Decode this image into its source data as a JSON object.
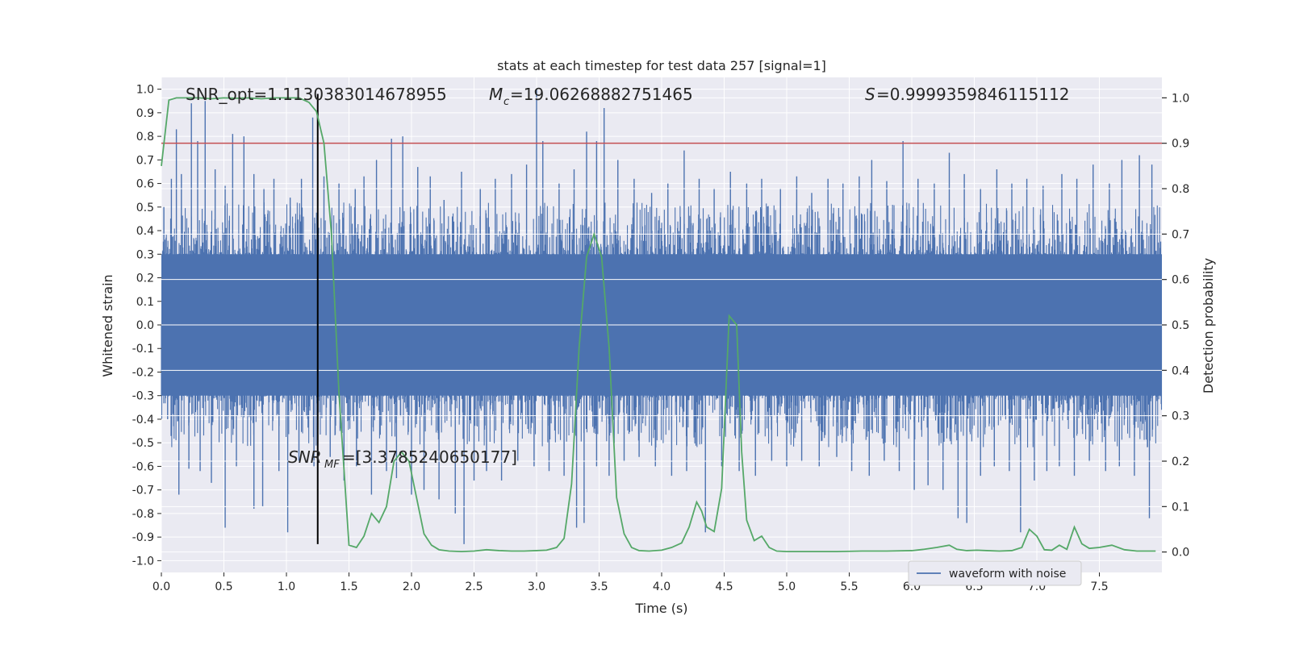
{
  "chart_data": {
    "type": "line",
    "title": "stats at each timestep for test data 257 [signal=1]",
    "xlabel": "Time (s)",
    "ylabel": "Whitened strain",
    "y2label": "Detection probability",
    "xlim": [
      0,
      8
    ],
    "ylim": [
      -1.05,
      1.05
    ],
    "y2lim": [
      -0.045,
      1.045
    ],
    "x_ticks": [
      0.0,
      0.5,
      1.0,
      1.5,
      2.0,
      2.5,
      3.0,
      3.5,
      4.0,
      4.5,
      5.0,
      5.5,
      6.0,
      6.5,
      7.0,
      7.5
    ],
    "x_tick_labels": [
      "0.0",
      "0.5",
      "1.0",
      "1.5",
      "2.0",
      "2.5",
      "3.0",
      "3.5",
      "4.0",
      "4.5",
      "5.0",
      "5.5",
      "6.0",
      "6.5",
      "7.0",
      "7.5"
    ],
    "y_ticks": [
      1.0,
      0.9,
      0.8,
      0.7,
      0.6,
      0.5,
      0.4,
      0.3,
      0.2,
      0.1,
      0.0,
      -0.1,
      -0.2,
      -0.3,
      -0.4,
      -0.5,
      -0.6,
      -0.7,
      -0.8,
      -0.9,
      -1.0
    ],
    "y_tick_labels": [
      "1.0",
      "0.9",
      "0.8",
      "0.7",
      "0.6",
      "0.5",
      "0.4",
      "0.3",
      "0.2",
      "0.1",
      "0.0",
      "-0.1",
      "-0.2",
      "-0.3",
      "-0.4",
      "-0.5",
      "-0.6",
      "-0.7",
      "-0.8",
      "-0.9",
      "-1.0"
    ],
    "y2_ticks": [
      1.0,
      0.9,
      0.8,
      0.7,
      0.6,
      0.5,
      0.4,
      0.3,
      0.2,
      0.1,
      0.0
    ],
    "y2_tick_labels": [
      "1.0",
      "0.9",
      "0.8",
      "0.7",
      "0.6",
      "0.5",
      "0.4",
      "0.3",
      "0.2",
      "0.1",
      "0.0"
    ],
    "grid": true,
    "legend_position": "bottom-right",
    "annotations": {
      "snr_opt": "SNR_opt=1.1130383014678955",
      "mc": "=19.06268882751465",
      "s": "=0.9999359846115112",
      "snr_mf": "=[3.3785240650177]"
    },
    "series": [
      {
        "name": "waveform with noise",
        "color": "#4c72b0",
        "description_style": "dense noise",
        "spikes": [
          {
            "x": 0.02,
            "y": 0.5
          },
          {
            "x": 0.08,
            "y": 0.62
          },
          {
            "x": 0.12,
            "y": 0.83
          },
          {
            "x": 0.16,
            "y": 0.64
          },
          {
            "x": 0.24,
            "y": 0.94
          },
          {
            "x": 0.29,
            "y": 0.78
          },
          {
            "x": 0.35,
            "y": 0.95
          },
          {
            "x": 0.43,
            "y": 0.66
          },
          {
            "x": 0.51,
            "y": 0.59
          },
          {
            "x": 0.57,
            "y": 0.81
          },
          {
            "x": 0.66,
            "y": 0.8
          },
          {
            "x": 0.74,
            "y": 0.64
          },
          {
            "x": 0.82,
            "y": 0.58
          },
          {
            "x": 0.9,
            "y": 0.62
          },
          {
            "x": 1.03,
            "y": 0.54
          },
          {
            "x": 1.12,
            "y": 0.62
          },
          {
            "x": 1.21,
            "y": 0.88
          },
          {
            "x": 1.3,
            "y": 0.63
          },
          {
            "x": 1.42,
            "y": 0.6
          },
          {
            "x": 1.55,
            "y": 0.58
          },
          {
            "x": 1.62,
            "y": 0.63
          },
          {
            "x": 1.72,
            "y": 0.7
          },
          {
            "x": 1.84,
            "y": 0.79
          },
          {
            "x": 1.93,
            "y": 0.8
          },
          {
            "x": 2.05,
            "y": 0.67
          },
          {
            "x": 2.15,
            "y": 0.63
          },
          {
            "x": 2.26,
            "y": 0.53
          },
          {
            "x": 2.4,
            "y": 0.65
          },
          {
            "x": 2.55,
            "y": 0.58
          },
          {
            "x": 2.67,
            "y": 0.62
          },
          {
            "x": 2.8,
            "y": 0.64
          },
          {
            "x": 2.92,
            "y": 0.68
          },
          {
            "x": 3.0,
            "y": 1.0
          },
          {
            "x": 3.05,
            "y": 0.78
          },
          {
            "x": 3.18,
            "y": 0.6
          },
          {
            "x": 3.3,
            "y": 0.66
          },
          {
            "x": 3.4,
            "y": 0.82
          },
          {
            "x": 3.48,
            "y": 0.78
          },
          {
            "x": 3.54,
            "y": 0.92
          },
          {
            "x": 3.65,
            "y": 0.7
          },
          {
            "x": 3.78,
            "y": 0.62
          },
          {
            "x": 3.92,
            "y": 0.56
          },
          {
            "x": 4.05,
            "y": 0.6
          },
          {
            "x": 4.18,
            "y": 0.74
          },
          {
            "x": 4.3,
            "y": 0.62
          },
          {
            "x": 4.42,
            "y": 0.58
          },
          {
            "x": 4.55,
            "y": 0.65
          },
          {
            "x": 4.68,
            "y": 0.6
          },
          {
            "x": 4.8,
            "y": 0.62
          },
          {
            "x": 4.95,
            "y": 0.58
          },
          {
            "x": 5.08,
            "y": 0.63
          },
          {
            "x": 5.2,
            "y": 0.56
          },
          {
            "x": 5.33,
            "y": 0.62
          },
          {
            "x": 5.45,
            "y": 0.6
          },
          {
            "x": 5.58,
            "y": 0.63
          },
          {
            "x": 5.68,
            "y": 0.7
          },
          {
            "x": 5.8,
            "y": 0.61
          },
          {
            "x": 5.93,
            "y": 0.78
          },
          {
            "x": 6.05,
            "y": 0.62
          },
          {
            "x": 6.18,
            "y": 0.6
          },
          {
            "x": 6.3,
            "y": 0.73
          },
          {
            "x": 6.42,
            "y": 0.64
          },
          {
            "x": 6.55,
            "y": 0.58
          },
          {
            "x": 6.68,
            "y": 0.66
          },
          {
            "x": 6.8,
            "y": 0.6
          },
          {
            "x": 6.92,
            "y": 0.62
          },
          {
            "x": 7.05,
            "y": 0.59
          },
          {
            "x": 7.2,
            "y": 0.64
          },
          {
            "x": 7.32,
            "y": 0.62
          },
          {
            "x": 7.45,
            "y": 0.68
          },
          {
            "x": 7.58,
            "y": 0.6
          },
          {
            "x": 7.68,
            "y": 0.7
          },
          {
            "x": 7.82,
            "y": 0.72
          },
          {
            "x": 7.92,
            "y": 0.68
          },
          {
            "x": 0.05,
            "y": -0.4
          },
          {
            "x": 0.14,
            "y": -0.72
          },
          {
            "x": 0.22,
            "y": -0.61
          },
          {
            "x": 0.31,
            "y": -0.62
          },
          {
            "x": 0.4,
            "y": -0.67
          },
          {
            "x": 0.51,
            "y": -0.86
          },
          {
            "x": 0.6,
            "y": -0.6
          },
          {
            "x": 0.74,
            "y": -0.78
          },
          {
            "x": 0.81,
            "y": -0.77
          },
          {
            "x": 0.94,
            "y": -0.62
          },
          {
            "x": 1.01,
            "y": -0.88
          },
          {
            "x": 1.1,
            "y": -0.58
          },
          {
            "x": 1.22,
            "y": -0.6
          },
          {
            "x": 1.35,
            "y": -0.56
          },
          {
            "x": 1.46,
            "y": -0.66
          },
          {
            "x": 1.56,
            "y": -0.6
          },
          {
            "x": 1.68,
            "y": -0.72
          },
          {
            "x": 1.8,
            "y": -0.62
          },
          {
            "x": 1.88,
            "y": -0.65
          },
          {
            "x": 2.0,
            "y": -0.72
          },
          {
            "x": 2.1,
            "y": -0.7
          },
          {
            "x": 2.22,
            "y": -0.74
          },
          {
            "x": 2.35,
            "y": -0.8
          },
          {
            "x": 2.42,
            "y": -0.93
          },
          {
            "x": 2.5,
            "y": -0.66
          },
          {
            "x": 2.6,
            "y": -0.62
          },
          {
            "x": 2.72,
            "y": -0.66
          },
          {
            "x": 2.85,
            "y": -0.58
          },
          {
            "x": 2.98,
            "y": -0.6
          },
          {
            "x": 3.1,
            "y": -0.62
          },
          {
            "x": 3.22,
            "y": -0.64
          },
          {
            "x": 3.32,
            "y": -0.86
          },
          {
            "x": 3.38,
            "y": -0.84
          },
          {
            "x": 3.48,
            "y": -0.6
          },
          {
            "x": 3.58,
            "y": -0.64
          },
          {
            "x": 3.7,
            "y": -0.58
          },
          {
            "x": 3.82,
            "y": -0.56
          },
          {
            "x": 3.95,
            "y": -0.6
          },
          {
            "x": 4.08,
            "y": -0.64
          },
          {
            "x": 4.2,
            "y": -0.62
          },
          {
            "x": 4.35,
            "y": -0.88
          },
          {
            "x": 4.48,
            "y": -0.6
          },
          {
            "x": 4.62,
            "y": -0.62
          },
          {
            "x": 4.75,
            "y": -0.64
          },
          {
            "x": 4.88,
            "y": -0.58
          },
          {
            "x": 5.0,
            "y": -0.6
          },
          {
            "x": 5.12,
            "y": -0.58
          },
          {
            "x": 5.26,
            "y": -0.6
          },
          {
            "x": 5.4,
            "y": -0.56
          },
          {
            "x": 5.52,
            "y": -0.62
          },
          {
            "x": 5.66,
            "y": -0.64
          },
          {
            "x": 5.78,
            "y": -0.58
          },
          {
            "x": 5.9,
            "y": -0.62
          },
          {
            "x": 6.02,
            "y": -0.7
          },
          {
            "x": 6.13,
            "y": -0.68
          },
          {
            "x": 6.25,
            "y": -0.7
          },
          {
            "x": 6.37,
            "y": -0.82
          },
          {
            "x": 6.44,
            "y": -0.84
          },
          {
            "x": 6.55,
            "y": -0.64
          },
          {
            "x": 6.66,
            "y": -0.6
          },
          {
            "x": 6.78,
            "y": -0.62
          },
          {
            "x": 6.87,
            "y": -0.88
          },
          {
            "x": 6.98,
            "y": -0.66
          },
          {
            "x": 7.08,
            "y": -0.62
          },
          {
            "x": 7.18,
            "y": -0.6
          },
          {
            "x": 7.3,
            "y": -0.64
          },
          {
            "x": 7.42,
            "y": -0.58
          },
          {
            "x": 7.55,
            "y": -0.62
          },
          {
            "x": 7.66,
            "y": -0.6
          },
          {
            "x": 7.78,
            "y": -0.64
          },
          {
            "x": 7.9,
            "y": -0.82
          }
        ]
      },
      {
        "name": "detection probability",
        "color": "#55a868",
        "axis": "right",
        "x": [
          0.0,
          0.06,
          0.12,
          0.2,
          0.3,
          0.4,
          0.5,
          0.6,
          0.7,
          0.8,
          0.9,
          1.0,
          1.1,
          1.18,
          1.24,
          1.3,
          1.36,
          1.42,
          1.5,
          1.56,
          1.62,
          1.68,
          1.74,
          1.8,
          1.86,
          1.92,
          1.98,
          2.04,
          2.1,
          2.16,
          2.22,
          2.3,
          2.4,
          2.5,
          2.6,
          2.7,
          2.8,
          2.9,
          3.0,
          3.08,
          3.16,
          3.22,
          3.28,
          3.34,
          3.4,
          3.46,
          3.52,
          3.58,
          3.64,
          3.7,
          3.76,
          3.82,
          3.9,
          4.0,
          4.08,
          4.16,
          4.22,
          4.28,
          4.32,
          4.36,
          4.42,
          4.48,
          4.54,
          4.6,
          4.64,
          4.68,
          4.74,
          4.8,
          4.86,
          4.92,
          5.0,
          5.2,
          5.4,
          5.6,
          5.8,
          6.0,
          6.1,
          6.2,
          6.3,
          6.36,
          6.44,
          6.52,
          6.6,
          6.7,
          6.8,
          6.88,
          6.94,
          7.0,
          7.06,
          7.12,
          7.18,
          7.24,
          7.3,
          7.36,
          7.42,
          7.5,
          7.6,
          7.7,
          7.8,
          7.95
        ],
        "values": [
          0.85,
          0.995,
          1.0,
          1.0,
          1.0,
          0.998,
          1.0,
          0.999,
          1.0,
          0.998,
          1.0,
          1.0,
          1.0,
          0.99,
          0.97,
          0.9,
          0.7,
          0.35,
          0.015,
          0.01,
          0.035,
          0.085,
          0.065,
          0.1,
          0.2,
          0.22,
          0.2,
          0.12,
          0.04,
          0.015,
          0.005,
          0.002,
          0.001,
          0.002,
          0.005,
          0.003,
          0.002,
          0.002,
          0.003,
          0.004,
          0.01,
          0.03,
          0.15,
          0.45,
          0.65,
          0.7,
          0.65,
          0.45,
          0.12,
          0.04,
          0.01,
          0.003,
          0.002,
          0.004,
          0.01,
          0.02,
          0.055,
          0.11,
          0.09,
          0.055,
          0.045,
          0.14,
          0.52,
          0.5,
          0.22,
          0.07,
          0.025,
          0.035,
          0.01,
          0.002,
          0.001,
          0.001,
          0.001,
          0.002,
          0.002,
          0.003,
          0.006,
          0.01,
          0.015,
          0.006,
          0.003,
          0.004,
          0.003,
          0.002,
          0.003,
          0.01,
          0.05,
          0.035,
          0.005,
          0.004,
          0.015,
          0.006,
          0.055,
          0.018,
          0.008,
          0.01,
          0.015,
          0.005,
          0.002,
          0.002
        ]
      }
    ],
    "threshold_line": {
      "y2": 0.9,
      "color": "#c44e52"
    },
    "marker_line": {
      "x": 1.25,
      "y_top": 0.98,
      "y_bottom": -0.93,
      "color": "#000000"
    },
    "legend_label": "waveform with noise"
  },
  "colors": {
    "plot_bg": "#eaeaf2",
    "grid": "#ffffff",
    "noise": "#4c72b0",
    "prob": "#55a868",
    "threshold": "#c44e52"
  }
}
